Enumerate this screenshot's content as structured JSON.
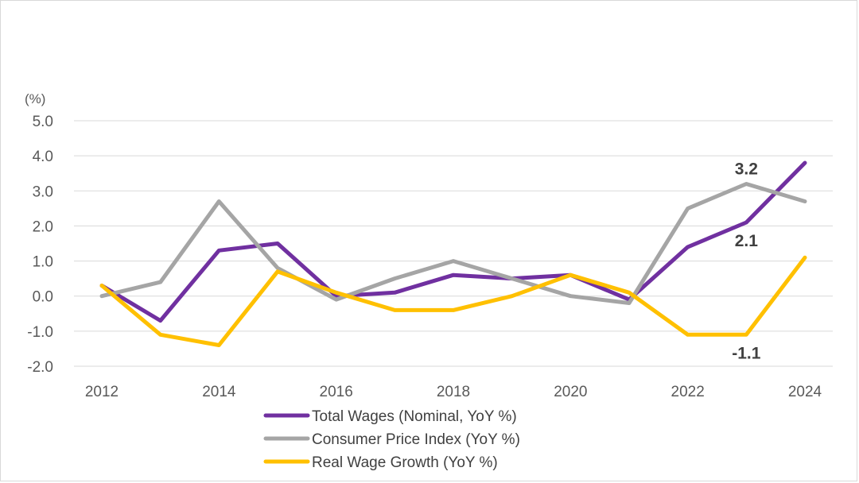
{
  "chart_data": {
    "type": "line",
    "title": "",
    "xlabel": "",
    "ylabel": "(%)",
    "ylim": [
      -2.0,
      5.0
    ],
    "yticks": [
      "5.0",
      "4.0",
      "3.0",
      "2.0",
      "1.0",
      "0.0",
      "-1.0",
      "-2.0"
    ],
    "ytick_values": [
      5,
      4,
      3,
      2,
      1,
      0,
      -1,
      -2
    ],
    "x": [
      2012,
      2013,
      2014,
      2015,
      2016,
      2017,
      2018,
      2019,
      2020,
      2021,
      2022,
      2023,
      2024
    ],
    "xticks": [
      "2012",
      "2014",
      "2016",
      "2018",
      "2020",
      "2022",
      "2024"
    ],
    "xtick_values": [
      2012,
      2014,
      2016,
      2018,
      2020,
      2022,
      2024
    ],
    "grid": true,
    "legend_position": "bottom",
    "series": [
      {
        "name": "Total Wages (Nominal, YoY %)",
        "color": "#7030a0",
        "values": [
          0.3,
          -0.7,
          1.3,
          1.5,
          0.0,
          0.1,
          0.6,
          0.5,
          0.6,
          -0.1,
          1.4,
          2.1,
          3.8
        ]
      },
      {
        "name": "Consumer Price Index (YoY %)",
        "color": "#a5a5a5",
        "values": [
          0.0,
          0.4,
          2.7,
          0.8,
          -0.1,
          0.5,
          1.0,
          0.5,
          0.0,
          -0.2,
          2.5,
          3.2,
          2.7
        ]
      },
      {
        "name": "Real Wage Growth (YoY %)",
        "color": "#ffc000",
        "values": [
          0.3,
          -1.1,
          -1.4,
          0.7,
          0.1,
          -0.4,
          -0.4,
          0.0,
          0.6,
          0.1,
          -1.1,
          -1.1,
          1.1
        ]
      }
    ],
    "annotations": [
      {
        "text": "3.2",
        "series": 1,
        "year": 2023,
        "placement": "above"
      },
      {
        "text": "2.1",
        "series": 0,
        "year": 2023,
        "placement": "below"
      },
      {
        "text": "-1.1",
        "series": 2,
        "year": 2023,
        "placement": "below"
      }
    ]
  }
}
